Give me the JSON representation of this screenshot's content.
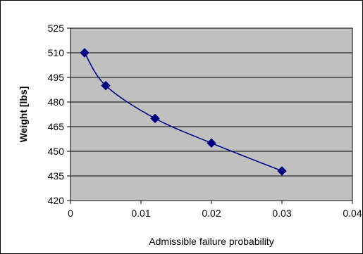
{
  "chart_data": {
    "type": "line",
    "title": "",
    "xlabel": "Admissible failure probability",
    "ylabel": "Weight [lbs]",
    "xlim": [
      0,
      0.04
    ],
    "ylim": [
      420,
      525
    ],
    "x_ticks": [
      0,
      0.01,
      0.02,
      0.03,
      0.04
    ],
    "x_tick_labels": [
      "0",
      "0.01",
      "0.02",
      "0.03",
      "0.04"
    ],
    "y_ticks": [
      420,
      435,
      450,
      465,
      480,
      495,
      510,
      525
    ],
    "y_tick_labels": [
      "420",
      "435",
      "450",
      "465",
      "480",
      "495",
      "510",
      "525"
    ],
    "grid": true,
    "legend": "none",
    "series": [
      {
        "marker": "diamond",
        "color": "#000080",
        "x": [
          0.002,
          0.005,
          0.012,
          0.02,
          0.03
        ],
        "y": [
          510,
          490,
          470,
          455,
          438
        ]
      }
    ],
    "colors": {
      "plot_background": "#c0c0c0",
      "grid": "#000000",
      "frame": "#000000"
    }
  }
}
